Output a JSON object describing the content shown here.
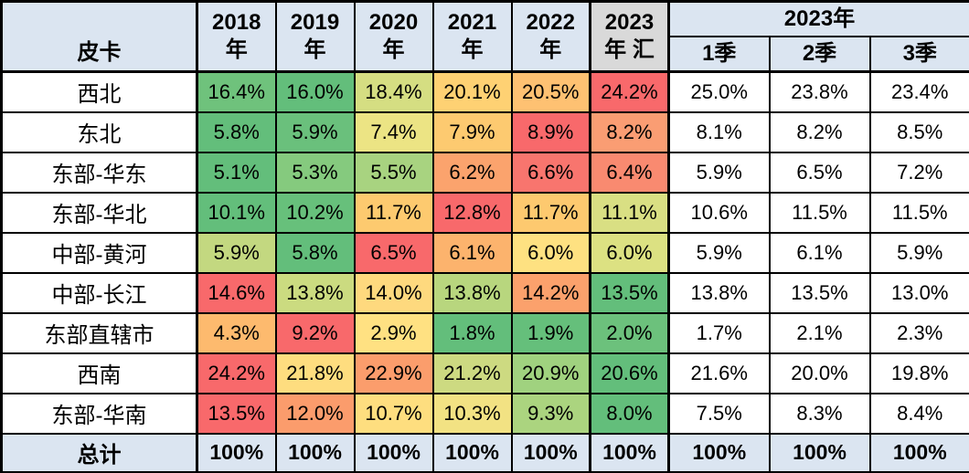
{
  "colors": {
    "header_blue": "#dbe5f1",
    "huizong_gray": "#d9d9d9",
    "total_row_blue": "#dbe5f1",
    "border_black": "#000000",
    "quarter_cell_white": "#ffffff",
    "scale_green": "#63be7b",
    "scale_yellow": "#ffe182",
    "scale_red": "#f8696b"
  },
  "table": {
    "corner_label": "皮卡",
    "year_headers": [
      "2018\n年",
      "2019\n年",
      "2020\n年",
      "2021\n年",
      "2022\n年",
      "2023\n年 汇"
    ],
    "group_header": "2023年",
    "quarter_headers": [
      "1季",
      "2季",
      "3季"
    ],
    "rows": [
      {
        "label": "西北",
        "year_cells": [
          {
            "v": "16.4%",
            "bg": "#6fc27c"
          },
          {
            "v": "16.0%",
            "bg": "#63be7b"
          },
          {
            "v": "18.4%",
            "bg": "#d5de82"
          },
          {
            "v": "20.1%",
            "bg": "#fed173"
          },
          {
            "v": "20.5%",
            "bg": "#fec172"
          },
          {
            "v": "24.2%",
            "bg": "#f8696b"
          }
        ],
        "quarters": [
          "25.0%",
          "23.8%",
          "23.4%"
        ]
      },
      {
        "label": "东北",
        "year_cells": [
          {
            "v": "5.8%",
            "bg": "#63be7b"
          },
          {
            "v": "5.9%",
            "bg": "#6ac07c"
          },
          {
            "v": "7.4%",
            "bg": "#ece484"
          },
          {
            "v": "7.9%",
            "bg": "#fdca70"
          },
          {
            "v": "8.9%",
            "bg": "#f8696b"
          },
          {
            "v": "8.2%",
            "bg": "#fa9d73"
          }
        ],
        "quarters": [
          "8.1%",
          "8.2%",
          "8.5%"
        ]
      },
      {
        "label": "东部-华东",
        "year_cells": [
          {
            "v": "5.1%",
            "bg": "#63be7b"
          },
          {
            "v": "5.3%",
            "bg": "#85ca7e"
          },
          {
            "v": "5.5%",
            "bg": "#a8d380"
          },
          {
            "v": "6.2%",
            "bg": "#fba36d"
          },
          {
            "v": "6.6%",
            "bg": "#f8756e"
          },
          {
            "v": "6.4%",
            "bg": "#f98a70"
          }
        ],
        "quarters": [
          "5.9%",
          "6.5%",
          "7.2%"
        ]
      },
      {
        "label": "东部-华北",
        "year_cells": [
          {
            "v": "10.1%",
            "bg": "#63be7b"
          },
          {
            "v": "10.2%",
            "bg": "#67c07b"
          },
          {
            "v": "11.7%",
            "bg": "#fdca6f"
          },
          {
            "v": "12.8%",
            "bg": "#f8696b"
          },
          {
            "v": "11.7%",
            "bg": "#fdc96f"
          },
          {
            "v": "11.1%",
            "bg": "#d9df83"
          }
        ],
        "quarters": [
          "10.6%",
          "11.5%",
          "11.5%"
        ]
      },
      {
        "label": "中部-黄河",
        "year_cells": [
          {
            "v": "5.9%",
            "bg": "#c3d880"
          },
          {
            "v": "5.8%",
            "bg": "#63be7b"
          },
          {
            "v": "6.5%",
            "bg": "#f8696b"
          },
          {
            "v": "6.1%",
            "bg": "#fcb36d"
          },
          {
            "v": "6.0%",
            "bg": "#fee181"
          },
          {
            "v": "6.0%",
            "bg": "#dce182"
          }
        ],
        "quarters": [
          "5.9%",
          "6.1%",
          "5.9%"
        ]
      },
      {
        "label": "中部-长江",
        "year_cells": [
          {
            "v": "14.6%",
            "bg": "#f8696b"
          },
          {
            "v": "13.8%",
            "bg": "#cbdb80"
          },
          {
            "v": "14.0%",
            "bg": "#fed97e"
          },
          {
            "v": "13.8%",
            "bg": "#b8d67e"
          },
          {
            "v": "14.2%",
            "bg": "#fba16c"
          },
          {
            "v": "13.5%",
            "bg": "#63be7b"
          }
        ],
        "quarters": [
          "13.8%",
          "13.5%",
          "13.0%"
        ]
      },
      {
        "label": "东部直辖市",
        "year_cells": [
          {
            "v": "4.3%",
            "bg": "#fdba6e"
          },
          {
            "v": "9.2%",
            "bg": "#f8696b"
          },
          {
            "v": "2.9%",
            "bg": "#ffe182"
          },
          {
            "v": "1.8%",
            "bg": "#63be7b"
          },
          {
            "v": "1.9%",
            "bg": "#65bf7b"
          },
          {
            "v": "2.0%",
            "bg": "#6cc17c"
          }
        ],
        "quarters": [
          "1.7%",
          "2.1%",
          "2.3%"
        ]
      },
      {
        "label": "西南",
        "year_cells": [
          {
            "v": "24.2%",
            "bg": "#f8696b"
          },
          {
            "v": "21.8%",
            "bg": "#fedd7f"
          },
          {
            "v": "22.9%",
            "bg": "#fb9d6c"
          },
          {
            "v": "21.2%",
            "bg": "#cdda81"
          },
          {
            "v": "20.9%",
            "bg": "#a0d27f"
          },
          {
            "v": "20.6%",
            "bg": "#63be7b"
          }
        ],
        "quarters": [
          "21.6%",
          "20.0%",
          "19.8%"
        ]
      },
      {
        "label": "东部-华南",
        "year_cells": [
          {
            "v": "13.5%",
            "bg": "#f8696b"
          },
          {
            "v": "12.0%",
            "bg": "#fb9c6c"
          },
          {
            "v": "10.7%",
            "bg": "#fede7f"
          },
          {
            "v": "10.3%",
            "bg": "#f2e283"
          },
          {
            "v": "9.3%",
            "bg": "#abd47f"
          },
          {
            "v": "8.0%",
            "bg": "#63be7b"
          }
        ],
        "quarters": [
          "7.5%",
          "8.3%",
          "8.4%"
        ]
      }
    ],
    "total_row": {
      "label": "总计",
      "values": [
        "100%",
        "100%",
        "100%",
        "100%",
        "100%",
        "100%",
        "100%",
        "100%",
        "100%"
      ]
    }
  },
  "chart_data": {
    "type": "table",
    "row_label_header": "皮卡",
    "columns": [
      "2018年",
      "2019年",
      "2020年",
      "2021年",
      "2022年",
      "2023年汇",
      "2023年1季",
      "2023年2季",
      "2023年3季"
    ],
    "rows": [
      "西北",
      "东北",
      "东部-华东",
      "东部-华北",
      "中部-黄河",
      "中部-长江",
      "东部直辖市",
      "西南",
      "东部-华南",
      "总计"
    ],
    "values_percent": [
      [
        16.4,
        16.0,
        18.4,
        20.1,
        20.5,
        24.2,
        25.0,
        23.8,
        23.4
      ],
      [
        5.8,
        5.9,
        7.4,
        7.9,
        8.9,
        8.2,
        8.1,
        8.2,
        8.5
      ],
      [
        5.1,
        5.3,
        5.5,
        6.2,
        6.6,
        6.4,
        5.9,
        6.5,
        7.2
      ],
      [
        10.1,
        10.2,
        11.7,
        12.8,
        11.7,
        11.1,
        10.6,
        11.5,
        11.5
      ],
      [
        5.9,
        5.8,
        6.5,
        6.1,
        6.0,
        6.0,
        5.9,
        6.1,
        5.9
      ],
      [
        14.6,
        13.8,
        14.0,
        13.8,
        14.2,
        13.5,
        13.8,
        13.5,
        13.0
      ],
      [
        4.3,
        9.2,
        2.9,
        1.8,
        1.9,
        2.0,
        1.7,
        2.1,
        2.3
      ],
      [
        24.2,
        21.8,
        22.9,
        21.2,
        20.9,
        20.6,
        21.6,
        20.0,
        19.8
      ],
      [
        13.5,
        12.0,
        10.7,
        10.3,
        9.3,
        8.0,
        7.5,
        8.3,
        8.4
      ],
      [
        100,
        100,
        100,
        100,
        100,
        100,
        100,
        100,
        100
      ]
    ],
    "heatmap": "per-row 3-color scale on year columns: min=green, mid=yellow, max=red; quarter columns unformatted (white)",
    "legend_position": "none",
    "grid": "on"
  }
}
